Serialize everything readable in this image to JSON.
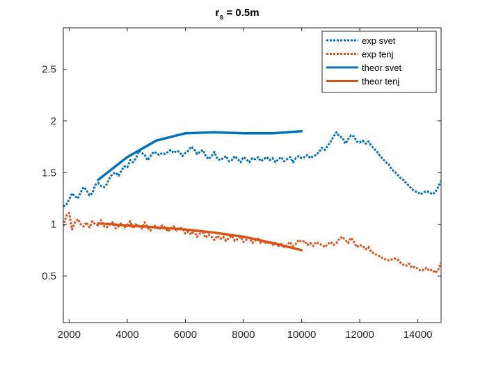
{
  "chart_data": {
    "type": "line",
    "title": {
      "main": "r",
      "subscript": "s",
      "rest": " = 0.5m"
    },
    "xlabel": "",
    "ylabel": "",
    "xlim": [
      1800,
      14800
    ],
    "ylim": [
      0.05,
      2.9
    ],
    "xticks": [
      2000,
      4000,
      6000,
      8000,
      10000,
      12000,
      14000
    ],
    "yticks": [
      0.5,
      1,
      1.5,
      2,
      2.5
    ],
    "grid": false,
    "legend_position": "top-right",
    "series": [
      {
        "name": "exp svet",
        "color": "#0072BD",
        "style": "dotted",
        "x": [
          1800,
          1900,
          2000,
          2100,
          2200,
          2300,
          2400,
          2500,
          2600,
          2700,
          2800,
          2900,
          3000,
          3100,
          3200,
          3300,
          3400,
          3500,
          3600,
          3700,
          3800,
          3900,
          4000,
          4100,
          4200,
          4300,
          4400,
          4500,
          4600,
          4700,
          4800,
          4900,
          5000,
          5100,
          5200,
          5300,
          5400,
          5500,
          5600,
          5700,
          5800,
          5900,
          6000,
          6100,
          6200,
          6300,
          6400,
          6500,
          6600,
          6700,
          6800,
          6900,
          7000,
          7100,
          7200,
          7300,
          7400,
          7500,
          7600,
          7700,
          7800,
          7900,
          8000,
          8100,
          8200,
          8300,
          8400,
          8500,
          8600,
          8700,
          8800,
          8900,
          9000,
          9100,
          9200,
          9300,
          9400,
          9500,
          9600,
          9700,
          9800,
          9900,
          10000,
          10100,
          10200,
          10300,
          10400,
          10500,
          10600,
          10700,
          10800,
          10900,
          11000,
          11100,
          11200,
          11300,
          11400,
          11500,
          11600,
          11700,
          11800,
          11900,
          12000,
          12100,
          12200,
          12300,
          12400,
          12500,
          12600,
          12700,
          12800,
          12900,
          13000,
          13100,
          13200,
          13300,
          13400,
          13500,
          13600,
          13700,
          13800,
          13900,
          14000,
          14100,
          14200,
          14300,
          14400,
          14500,
          14600,
          14700,
          14800
        ],
        "y": [
          1.17,
          1.19,
          1.24,
          1.3,
          1.27,
          1.25,
          1.31,
          1.36,
          1.33,
          1.28,
          1.3,
          1.38,
          1.4,
          1.37,
          1.36,
          1.39,
          1.45,
          1.49,
          1.5,
          1.47,
          1.52,
          1.56,
          1.55,
          1.62,
          1.6,
          1.64,
          1.71,
          1.69,
          1.67,
          1.62,
          1.66,
          1.7,
          1.69,
          1.67,
          1.69,
          1.68,
          1.7,
          1.72,
          1.69,
          1.71,
          1.7,
          1.66,
          1.69,
          1.71,
          1.75,
          1.73,
          1.68,
          1.7,
          1.72,
          1.66,
          1.63,
          1.66,
          1.7,
          1.63,
          1.62,
          1.64,
          1.66,
          1.61,
          1.62,
          1.66,
          1.63,
          1.6,
          1.65,
          1.63,
          1.6,
          1.64,
          1.63,
          1.65,
          1.61,
          1.63,
          1.65,
          1.62,
          1.64,
          1.6,
          1.63,
          1.65,
          1.61,
          1.63,
          1.65,
          1.6,
          1.64,
          1.66,
          1.64,
          1.65,
          1.67,
          1.64,
          1.66,
          1.67,
          1.7,
          1.74,
          1.72,
          1.76,
          1.8,
          1.85,
          1.89,
          1.85,
          1.84,
          1.78,
          1.82,
          1.86,
          1.85,
          1.8,
          1.79,
          1.81,
          1.78,
          1.8,
          1.76,
          1.73,
          1.7,
          1.66,
          1.63,
          1.6,
          1.58,
          1.53,
          1.51,
          1.48,
          1.45,
          1.43,
          1.4,
          1.37,
          1.34,
          1.32,
          1.31,
          1.29,
          1.31,
          1.32,
          1.31,
          1.29,
          1.31,
          1.36,
          1.42
        ]
      },
      {
        "name": "exp tenj",
        "color": "#D95319",
        "style": "dotted",
        "x": [
          1800,
          1900,
          2000,
          2100,
          2200,
          2300,
          2400,
          2500,
          2600,
          2700,
          2800,
          2900,
          3000,
          3100,
          3200,
          3300,
          3400,
          3500,
          3600,
          3700,
          3800,
          3900,
          4000,
          4100,
          4200,
          4300,
          4400,
          4500,
          4600,
          4700,
          4800,
          4900,
          5000,
          5100,
          5200,
          5300,
          5400,
          5500,
          5600,
          5700,
          5800,
          5900,
          6000,
          6100,
          6200,
          6300,
          6400,
          6500,
          6600,
          6700,
          6800,
          6900,
          7000,
          7100,
          7200,
          7300,
          7400,
          7500,
          7600,
          7700,
          7800,
          7900,
          8000,
          8100,
          8200,
          8300,
          8400,
          8500,
          8600,
          8700,
          8800,
          8900,
          9000,
          9100,
          9200,
          9300,
          9400,
          9500,
          9600,
          9700,
          9800,
          9900,
          10000,
          10100,
          10200,
          10300,
          10400,
          10500,
          10600,
          10700,
          10800,
          10900,
          11000,
          11100,
          11200,
          11300,
          11400,
          11500,
          11600,
          11700,
          11800,
          11900,
          12000,
          12100,
          12200,
          12300,
          12400,
          12500,
          12600,
          12700,
          12800,
          12900,
          13000,
          13100,
          13200,
          13300,
          13400,
          13500,
          13600,
          13700,
          13800,
          13900,
          14000,
          14100,
          14200,
          14300,
          14400,
          14500,
          14600,
          14700,
          14800
        ],
        "y": [
          0.98,
          1.08,
          1.11,
          0.95,
          1.02,
          1.05,
          1.0,
          0.98,
          1.02,
          0.97,
          1.03,
          1.0,
          0.99,
          1.04,
          0.98,
          0.97,
          1.0,
          1.02,
          0.96,
          0.98,
          1.01,
          0.97,
          0.99,
          1.03,
          0.96,
          1.0,
          0.98,
          0.96,
          1.02,
          0.97,
          0.94,
          0.99,
          0.98,
          0.95,
          0.99,
          0.97,
          0.93,
          0.96,
          0.98,
          0.94,
          0.97,
          0.96,
          0.91,
          0.93,
          0.9,
          0.94,
          0.88,
          0.91,
          0.92,
          0.87,
          0.9,
          0.88,
          0.85,
          0.89,
          0.86,
          0.88,
          0.84,
          0.87,
          0.89,
          0.84,
          0.86,
          0.88,
          0.83,
          0.85,
          0.87,
          0.82,
          0.84,
          0.86,
          0.82,
          0.84,
          0.81,
          0.83,
          0.8,
          0.82,
          0.79,
          0.81,
          0.78,
          0.8,
          0.83,
          0.79,
          0.81,
          0.85,
          0.83,
          0.84,
          0.8,
          0.82,
          0.79,
          0.83,
          0.81,
          0.8,
          0.78,
          0.81,
          0.83,
          0.8,
          0.82,
          0.86,
          0.88,
          0.85,
          0.82,
          0.87,
          0.83,
          0.78,
          0.8,
          0.79,
          0.76,
          0.78,
          0.73,
          0.72,
          0.7,
          0.69,
          0.67,
          0.66,
          0.65,
          0.66,
          0.67,
          0.66,
          0.63,
          0.61,
          0.6,
          0.62,
          0.58,
          0.59,
          0.57,
          0.55,
          0.56,
          0.58,
          0.55,
          0.56,
          0.53,
          0.56,
          0.63
        ]
      },
      {
        "name": "theor svet",
        "color": "#0072BD",
        "style": "solid",
        "x": [
          3000,
          4000,
          5000,
          6000,
          7000,
          8000,
          9000,
          10000
        ],
        "y": [
          1.43,
          1.65,
          1.81,
          1.88,
          1.89,
          1.88,
          1.88,
          1.9
        ]
      },
      {
        "name": "theor tenj",
        "color": "#D95319",
        "style": "solid",
        "x": [
          3000,
          4000,
          5000,
          6000,
          7000,
          8000,
          9000,
          10000
        ],
        "y": [
          1.01,
          0.99,
          0.97,
          0.95,
          0.92,
          0.88,
          0.82,
          0.75
        ]
      }
    ]
  }
}
